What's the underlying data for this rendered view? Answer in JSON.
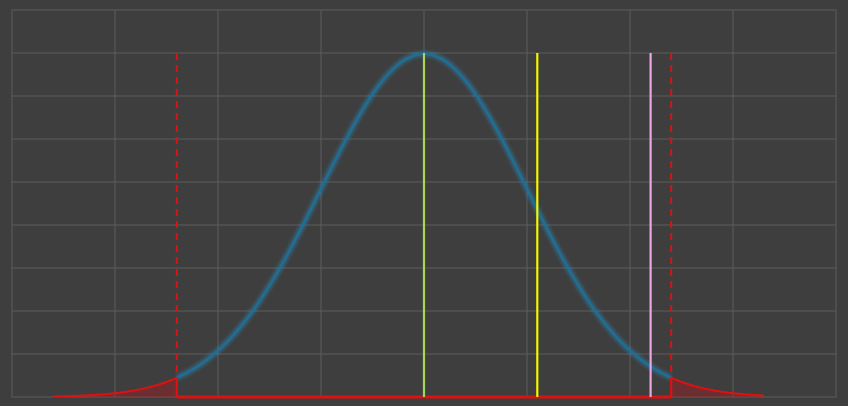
{
  "colors": {
    "background": "#3e3e3e",
    "grid": "#5c5c5c",
    "curve": "#1f6e94",
    "curve_glow": "#2a8cc0",
    "tail_fill": "#c0101a",
    "bounds": "#e01010",
    "mean_line": "#a8d65a",
    "value_line": "#f5f500",
    "marker_line": "#e9a6e0"
  },
  "chart_data": {
    "type": "line",
    "title": "",
    "xlabel": "",
    "ylabel": "",
    "xlim": [
      -4,
      4
    ],
    "ylim": [
      0,
      0.45
    ],
    "grid": true,
    "x_gridlines": [
      -4,
      -3,
      -2,
      -1,
      0,
      1,
      2,
      3,
      4
    ],
    "y_gridlines": [
      0,
      0.05,
      0.1,
      0.15,
      0.2,
      0.25,
      0.3,
      0.35,
      0.4,
      0.45
    ],
    "series": [
      {
        "name": "normal-density",
        "distribution": "normal",
        "mean": 0,
        "std": 1,
        "x_start": -3.6,
        "x_end": 3.3
      }
    ],
    "bounds": {
      "lower": -2.4,
      "upper": 2.4,
      "line_top": 0.4,
      "style": "dashed"
    },
    "vertical_lines": [
      {
        "name": "mean-line",
        "x": 0,
        "top": 0.4
      },
      {
        "name": "value-line",
        "x": 1.1,
        "top": 0.4
      },
      {
        "name": "marker-line",
        "x": 2.2,
        "top": 0.4
      }
    ]
  }
}
